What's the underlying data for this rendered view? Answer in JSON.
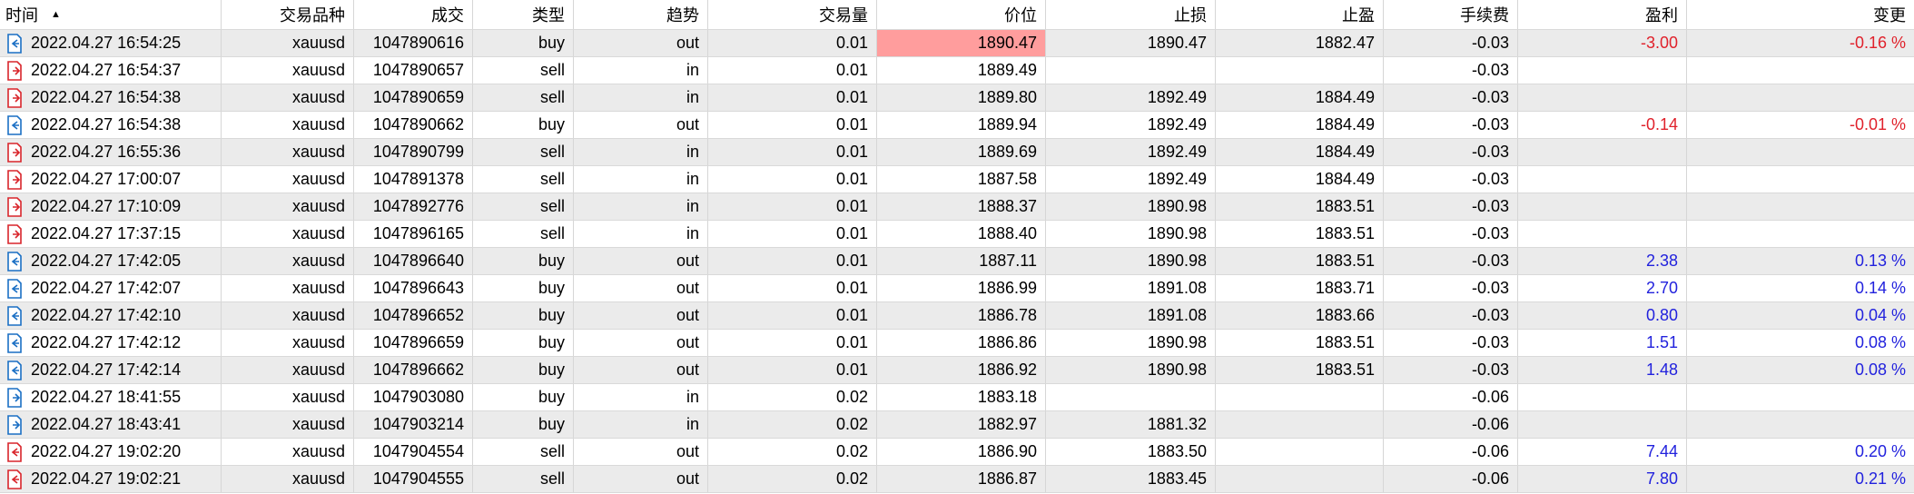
{
  "headers": {
    "time": "时间",
    "symbol": "交易品种",
    "deal": "成交",
    "type": "类型",
    "direction": "趋势",
    "volume": "交易量",
    "price": "价位",
    "sl": "止损",
    "tp": "止盈",
    "commission": "手续费",
    "profit": "盈利",
    "change": "变更"
  },
  "sort_indicator": "▲",
  "colors": {
    "buy_icon": "#1a6fc4",
    "sell_icon": "#d9252b",
    "negative": "#e0212b",
    "positive": "#2222dd",
    "highlight": "#ff9d9d"
  },
  "rows": [
    {
      "time": "2022.04.27 16:54:25",
      "symbol": "xauusd",
      "deal": "1047890616",
      "type": "buy",
      "direction": "out",
      "volume": "0.01",
      "price": "1890.47",
      "sl": "1890.47",
      "tp": "1882.47",
      "commission": "-0.03",
      "profit": "-3.00",
      "change": "-0.16 %",
      "icon": "buy-out-icon",
      "price_highlight": true
    },
    {
      "time": "2022.04.27 16:54:37",
      "symbol": "xauusd",
      "deal": "1047890657",
      "type": "sell",
      "direction": "in",
      "volume": "0.01",
      "price": "1889.49",
      "sl": "",
      "tp": "",
      "commission": "-0.03",
      "profit": "",
      "change": "",
      "icon": "sell-in-icon"
    },
    {
      "time": "2022.04.27 16:54:38",
      "symbol": "xauusd",
      "deal": "1047890659",
      "type": "sell",
      "direction": "in",
      "volume": "0.01",
      "price": "1889.80",
      "sl": "1892.49",
      "tp": "1884.49",
      "commission": "-0.03",
      "profit": "",
      "change": "",
      "icon": "sell-in-icon"
    },
    {
      "time": "2022.04.27 16:54:38",
      "symbol": "xauusd",
      "deal": "1047890662",
      "type": "buy",
      "direction": "out",
      "volume": "0.01",
      "price": "1889.94",
      "sl": "1892.49",
      "tp": "1884.49",
      "commission": "-0.03",
      "profit": "-0.14",
      "change": "-0.01 %",
      "icon": "buy-out-icon"
    },
    {
      "time": "2022.04.27 16:55:36",
      "symbol": "xauusd",
      "deal": "1047890799",
      "type": "sell",
      "direction": "in",
      "volume": "0.01",
      "price": "1889.69",
      "sl": "1892.49",
      "tp": "1884.49",
      "commission": "-0.03",
      "profit": "",
      "change": "",
      "icon": "sell-in-icon"
    },
    {
      "time": "2022.04.27 17:00:07",
      "symbol": "xauusd",
      "deal": "1047891378",
      "type": "sell",
      "direction": "in",
      "volume": "0.01",
      "price": "1887.58",
      "sl": "1892.49",
      "tp": "1884.49",
      "commission": "-0.03",
      "profit": "",
      "change": "",
      "icon": "sell-in-icon"
    },
    {
      "time": "2022.04.27 17:10:09",
      "symbol": "xauusd",
      "deal": "1047892776",
      "type": "sell",
      "direction": "in",
      "volume": "0.01",
      "price": "1888.37",
      "sl": "1890.98",
      "tp": "1883.51",
      "commission": "-0.03",
      "profit": "",
      "change": "",
      "icon": "sell-in-icon"
    },
    {
      "time": "2022.04.27 17:37:15",
      "symbol": "xauusd",
      "deal": "1047896165",
      "type": "sell",
      "direction": "in",
      "volume": "0.01",
      "price": "1888.40",
      "sl": "1890.98",
      "tp": "1883.51",
      "commission": "-0.03",
      "profit": "",
      "change": "",
      "icon": "sell-in-icon"
    },
    {
      "time": "2022.04.27 17:42:05",
      "symbol": "xauusd",
      "deal": "1047896640",
      "type": "buy",
      "direction": "out",
      "volume": "0.01",
      "price": "1887.11",
      "sl": "1890.98",
      "tp": "1883.51",
      "commission": "-0.03",
      "profit": "2.38",
      "change": "0.13 %",
      "icon": "buy-out-icon"
    },
    {
      "time": "2022.04.27 17:42:07",
      "symbol": "xauusd",
      "deal": "1047896643",
      "type": "buy",
      "direction": "out",
      "volume": "0.01",
      "price": "1886.99",
      "sl": "1891.08",
      "tp": "1883.71",
      "commission": "-0.03",
      "profit": "2.70",
      "change": "0.14 %",
      "icon": "buy-out-icon"
    },
    {
      "time": "2022.04.27 17:42:10",
      "symbol": "xauusd",
      "deal": "1047896652",
      "type": "buy",
      "direction": "out",
      "volume": "0.01",
      "price": "1886.78",
      "sl": "1891.08",
      "tp": "1883.66",
      "commission": "-0.03",
      "profit": "0.80",
      "change": "0.04 %",
      "icon": "buy-out-icon"
    },
    {
      "time": "2022.04.27 17:42:12",
      "symbol": "xauusd",
      "deal": "1047896659",
      "type": "buy",
      "direction": "out",
      "volume": "0.01",
      "price": "1886.86",
      "sl": "1890.98",
      "tp": "1883.51",
      "commission": "-0.03",
      "profit": "1.51",
      "change": "0.08 %",
      "icon": "buy-out-icon"
    },
    {
      "time": "2022.04.27 17:42:14",
      "symbol": "xauusd",
      "deal": "1047896662",
      "type": "buy",
      "direction": "out",
      "volume": "0.01",
      "price": "1886.92",
      "sl": "1890.98",
      "tp": "1883.51",
      "commission": "-0.03",
      "profit": "1.48",
      "change": "0.08 %",
      "icon": "buy-out-icon"
    },
    {
      "time": "2022.04.27 18:41:55",
      "symbol": "xauusd",
      "deal": "1047903080",
      "type": "buy",
      "direction": "in",
      "volume": "0.02",
      "price": "1883.18",
      "sl": "",
      "tp": "",
      "commission": "-0.06",
      "profit": "",
      "change": "",
      "icon": "buy-in-icon"
    },
    {
      "time": "2022.04.27 18:43:41",
      "symbol": "xauusd",
      "deal": "1047903214",
      "type": "buy",
      "direction": "in",
      "volume": "0.02",
      "price": "1882.97",
      "sl": "1881.32",
      "tp": "",
      "commission": "-0.06",
      "profit": "",
      "change": "",
      "icon": "buy-in-icon"
    },
    {
      "time": "2022.04.27 19:02:20",
      "symbol": "xauusd",
      "deal": "1047904554",
      "type": "sell",
      "direction": "out",
      "volume": "0.02",
      "price": "1886.90",
      "sl": "1883.50",
      "tp": "",
      "commission": "-0.06",
      "profit": "7.44",
      "change": "0.20 %",
      "icon": "sell-out-icon"
    },
    {
      "time": "2022.04.27 19:02:21",
      "symbol": "xauusd",
      "deal": "1047904555",
      "type": "sell",
      "direction": "out",
      "volume": "0.02",
      "price": "1886.87",
      "sl": "1883.45",
      "tp": "",
      "commission": "-0.06",
      "profit": "7.80",
      "change": "0.21 %",
      "icon": "sell-out-icon"
    }
  ]
}
